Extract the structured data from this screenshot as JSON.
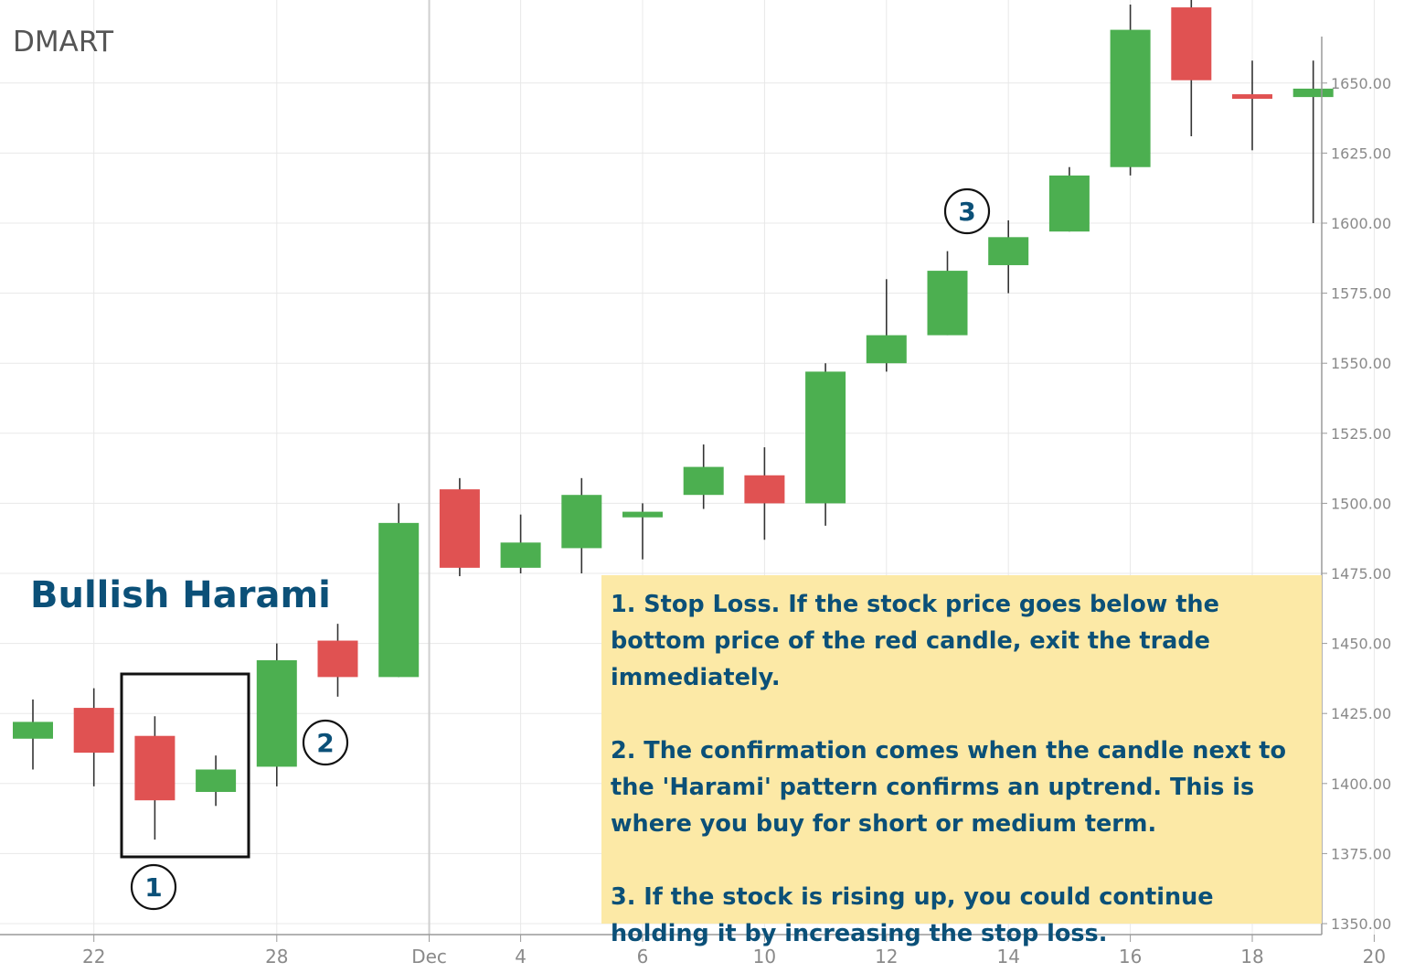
{
  "ticker": "DMART",
  "annotation": {
    "title": "Bullish Harami",
    "notes": [
      "1. Stop Loss. If the stock price goes below the bottom price of the red candle, exit the trade immediately.",
      "2. The confirmation comes when the candle next to the 'Harami' pattern confirms an uptrend. This is where you buy for short or medium term.",
      "3. If the stock is rising up, you could continue holding it by increasing the stop loss."
    ],
    "markers": [
      "1",
      "2",
      "3"
    ]
  },
  "colors": {
    "up": "#4caf50",
    "down": "#e05252",
    "grid": "#e8e8e8",
    "axis_text": "#8a8a8a",
    "note_bg": "#fce9a6",
    "note_text": "#0b5078"
  },
  "chart_data": {
    "type": "candlestick",
    "title": "DMART",
    "x_tick_labels": [
      "22",
      "28",
      "Dec",
      "4",
      "6",
      "10",
      "12",
      "14",
      "16",
      "18",
      "20"
    ],
    "y_ticks": [
      "1350.00",
      "1375.00",
      "1400.00",
      "1425.00",
      "1450.00",
      "1475.00",
      "1500.00",
      "1525.00",
      "1550.00",
      "1575.00",
      "1600.00",
      "1625.00",
      "1650.00"
    ],
    "ylim": [
      1350,
      1670
    ],
    "grid": true,
    "candles": [
      {
        "open": 1416,
        "high": 1430,
        "low": 1405,
        "close": 1422
      },
      {
        "open": 1427,
        "high": 1434,
        "low": 1399,
        "close": 1411
      },
      {
        "open": 1417,
        "high": 1424,
        "low": 1380,
        "close": 1394
      },
      {
        "open": 1397,
        "high": 1410,
        "low": 1392,
        "close": 1405
      },
      {
        "open": 1406,
        "high": 1450,
        "low": 1399,
        "close": 1444
      },
      {
        "open": 1451,
        "high": 1457,
        "low": 1431,
        "close": 1438
      },
      {
        "open": 1438,
        "high": 1500,
        "low": 1438,
        "close": 1493
      },
      {
        "open": 1505,
        "high": 1509,
        "low": 1474,
        "close": 1477
      },
      {
        "open": 1477,
        "high": 1496,
        "low": 1475,
        "close": 1486
      },
      {
        "open": 1484,
        "high": 1509,
        "low": 1475,
        "close": 1503
      },
      {
        "open": 1495,
        "high": 1500,
        "low": 1480,
        "close": 1497
      },
      {
        "open": 1503,
        "high": 1521,
        "low": 1498,
        "close": 1513
      },
      {
        "open": 1510,
        "high": 1520,
        "low": 1487,
        "close": 1500
      },
      {
        "open": 1500,
        "high": 1550,
        "low": 1492,
        "close": 1547
      },
      {
        "open": 1550,
        "high": 1580,
        "low": 1547,
        "close": 1560
      },
      {
        "open": 1560,
        "high": 1590,
        "low": 1560,
        "close": 1583
      },
      {
        "open": 1585,
        "high": 1601,
        "low": 1575,
        "close": 1595
      },
      {
        "open": 1597,
        "high": 1620,
        "low": 1597,
        "close": 1617
      },
      {
        "open": 1620,
        "high": 1678,
        "low": 1617,
        "close": 1669
      },
      {
        "open": 1677,
        "high": 1683,
        "low": 1631,
        "close": 1651
      },
      {
        "open": 1646,
        "high": 1658,
        "low": 1626,
        "close": 1645
      },
      {
        "open": 1645,
        "high": 1658,
        "low": 1600,
        "close": 1648
      }
    ]
  }
}
